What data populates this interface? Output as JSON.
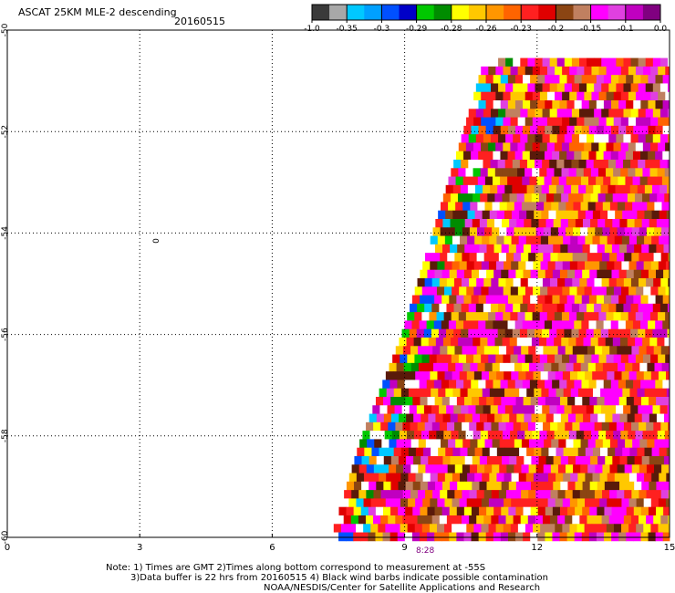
{
  "header": {
    "title": "ASCAT 25KM MLE-2 descending",
    "date": "20160515"
  },
  "colorbar": {
    "colors": [
      "#3a3a3a",
      "#a8a8a8",
      "#00c8ff",
      "#00a0ff",
      "#0050ff",
      "#0000c8",
      "#00c800",
      "#008c00",
      "#ffff00",
      "#ffc800",
      "#ff9600",
      "#ff6400",
      "#ff2020",
      "#e00000",
      "#8b4513",
      "#c08060",
      "#ff00ff",
      "#e040e0",
      "#c000c0",
      "#800080"
    ],
    "tick_labels": [
      "-1.0",
      "-0.35",
      "-0.3",
      "-0.29",
      "-0.28",
      "-0.26",
      "-0.23",
      "-0.2",
      "-0.15",
      "-0.1",
      "0.0"
    ]
  },
  "plot": {
    "contour_label": "0",
    "time_label": "8:28"
  },
  "notes": {
    "line1": "Note: 1) Times are GMT 2)Times along bottom correspond to measurement at -55S",
    "line2": "3)Data buffer is 22 hrs from 20160515 4) Black wind barbs indicate possible contamination",
    "line3": "NOAA/NESDIS/Center for Satellite Applications and Research"
  },
  "chart_data": {
    "type": "heatmap",
    "title": "ASCAT 25KM MLE-2 descending",
    "xlabel": "",
    "ylabel": "",
    "xlim": [
      0,
      15
    ],
    "ylim": [
      -60,
      -50
    ],
    "x_ticks": [
      0,
      3,
      6,
      9,
      12,
      15
    ],
    "x_tick_labels": [
      "0",
      "3",
      "6",
      "9",
      "12",
      "15"
    ],
    "y_ticks": [
      -50,
      -52,
      -54,
      -56,
      -58,
      -60
    ],
    "y_tick_labels": [
      "-50",
      "-52",
      "-54",
      "-56",
      "-58",
      "-60"
    ],
    "grid": true,
    "colorscale_values": [
      -1.0,
      -0.35,
      -0.3,
      -0.29,
      -0.28,
      -0.26,
      -0.23,
      -0.2,
      -0.15,
      -0.1,
      0.0
    ],
    "swath_left_edge": [
      {
        "lat": -50.5,
        "lon": 10.8
      },
      {
        "lat": -52,
        "lon": 10.3
      },
      {
        "lat": -54,
        "lon": 9.6
      },
      {
        "lat": -56,
        "lon": 8.9
      },
      {
        "lat": -58,
        "lon": 8.0
      },
      {
        "lat": -60,
        "lon": 7.3
      }
    ],
    "swath_right_edge_lon": 15
  }
}
